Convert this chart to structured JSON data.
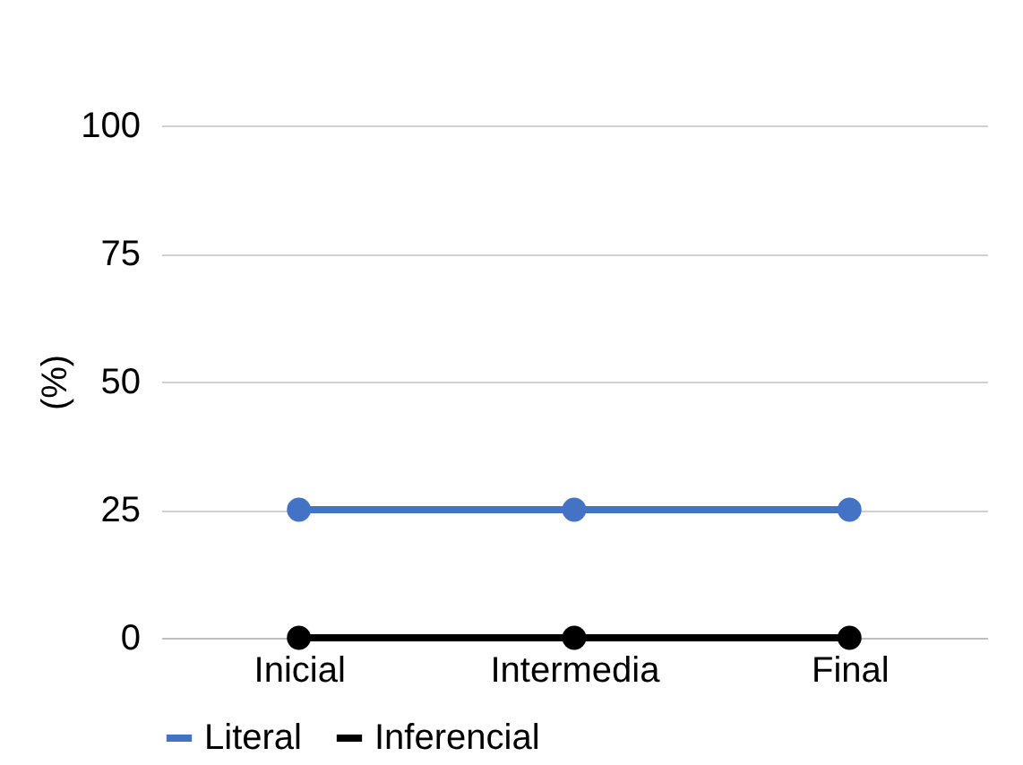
{
  "chart_data": {
    "type": "line",
    "ylabel": "(%)",
    "categories": [
      "Inicial",
      "Intermedia",
      "Final"
    ],
    "series": [
      {
        "name": "Literal",
        "color": "#4472c4",
        "values": [
          25,
          25,
          25
        ]
      },
      {
        "name": "Inferencial",
        "color": "#000000",
        "values": [
          0,
          0,
          0
        ]
      }
    ],
    "ylim": [
      0,
      100
    ],
    "yticks": [
      0,
      25,
      50,
      75,
      100
    ],
    "grid": "y",
    "legend": "bottom",
    "marker": "circle",
    "line_style": "solid"
  }
}
